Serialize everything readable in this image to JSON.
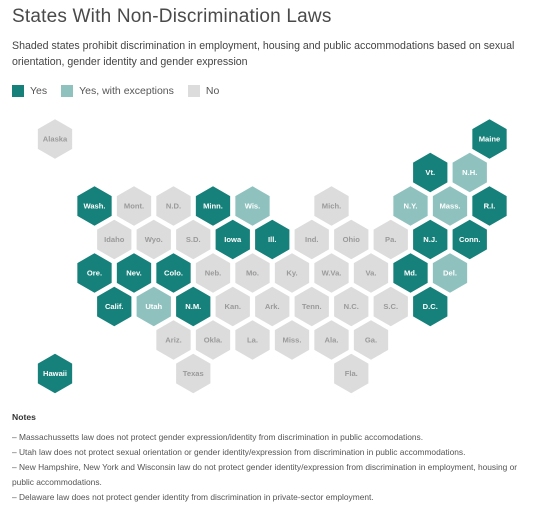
{
  "title": "States With Non-Discrimination Laws",
  "subtitle": "Shaded states prohibit discrimination in employment, housing and public accommodations based on sexual orientation, gender identity and gender expression",
  "legend": [
    {
      "key": "yes",
      "label": "Yes",
      "color": "#16807a"
    },
    {
      "key": "exceptions",
      "label": "Yes, with exceptions",
      "color": "#8fc2bf"
    },
    {
      "key": "no",
      "label": "No",
      "color": "#dcdcdc"
    }
  ],
  "label_colors": {
    "yes": "#ffffff",
    "exceptions": "#ffffff",
    "no": "#9a9a9a"
  },
  "states": [
    {
      "label": "Alaska",
      "row": 0,
      "col": 0,
      "status": "no"
    },
    {
      "label": "Maine",
      "row": 0,
      "col": 11,
      "status": "yes"
    },
    {
      "label": "Vt.",
      "row": 1,
      "col": 9.5,
      "status": "yes"
    },
    {
      "label": "N.H.",
      "row": 1,
      "col": 10.5,
      "status": "exceptions"
    },
    {
      "label": "Wash.",
      "row": 2,
      "col": 1,
      "status": "yes"
    },
    {
      "label": "Mont.",
      "row": 2,
      "col": 2,
      "status": "no"
    },
    {
      "label": "N.D.",
      "row": 2,
      "col": 3,
      "status": "no"
    },
    {
      "label": "Minn.",
      "row": 2,
      "col": 4,
      "status": "yes"
    },
    {
      "label": "Wis.",
      "row": 2,
      "col": 5,
      "status": "exceptions"
    },
    {
      "label": "Mich.",
      "row": 2,
      "col": 7,
      "status": "no"
    },
    {
      "label": "N.Y.",
      "row": 2,
      "col": 9,
      "status": "exceptions"
    },
    {
      "label": "Mass.",
      "row": 2,
      "col": 10,
      "status": "exceptions"
    },
    {
      "label": "R.I.",
      "row": 2,
      "col": 11,
      "status": "yes"
    },
    {
      "label": "Idaho",
      "row": 3,
      "col": 1.5,
      "status": "no"
    },
    {
      "label": "Wyo.",
      "row": 3,
      "col": 2.5,
      "status": "no"
    },
    {
      "label": "S.D.",
      "row": 3,
      "col": 3.5,
      "status": "no"
    },
    {
      "label": "Iowa",
      "row": 3,
      "col": 4.5,
      "status": "yes"
    },
    {
      "label": "Ill.",
      "row": 3,
      "col": 5.5,
      "status": "yes"
    },
    {
      "label": "Ind.",
      "row": 3,
      "col": 6.5,
      "status": "no"
    },
    {
      "label": "Ohio",
      "row": 3,
      "col": 7.5,
      "status": "no"
    },
    {
      "label": "Pa.",
      "row": 3,
      "col": 8.5,
      "status": "no"
    },
    {
      "label": "N.J.",
      "row": 3,
      "col": 9.5,
      "status": "yes"
    },
    {
      "label": "Conn.",
      "row": 3,
      "col": 10.5,
      "status": "yes"
    },
    {
      "label": "Ore.",
      "row": 4,
      "col": 1,
      "status": "yes"
    },
    {
      "label": "Nev.",
      "row": 4,
      "col": 2,
      "status": "yes"
    },
    {
      "label": "Colo.",
      "row": 4,
      "col": 3,
      "status": "yes"
    },
    {
      "label": "Neb.",
      "row": 4,
      "col": 4,
      "status": "no"
    },
    {
      "label": "Mo.",
      "row": 4,
      "col": 5,
      "status": "no"
    },
    {
      "label": "Ky.",
      "row": 4,
      "col": 6,
      "status": "no"
    },
    {
      "label": "W.Va.",
      "row": 4,
      "col": 7,
      "status": "no"
    },
    {
      "label": "Va.",
      "row": 4,
      "col": 8,
      "status": "no"
    },
    {
      "label": "Md.",
      "row": 4,
      "col": 9,
      "status": "yes"
    },
    {
      "label": "Del.",
      "row": 4,
      "col": 10,
      "status": "exceptions"
    },
    {
      "label": "Calif.",
      "row": 5,
      "col": 1.5,
      "status": "yes"
    },
    {
      "label": "Utah",
      "row": 5,
      "col": 2.5,
      "status": "exceptions"
    },
    {
      "label": "N.M.",
      "row": 5,
      "col": 3.5,
      "status": "yes"
    },
    {
      "label": "Kan.",
      "row": 5,
      "col": 4.5,
      "status": "no"
    },
    {
      "label": "Ark.",
      "row": 5,
      "col": 5.5,
      "status": "no"
    },
    {
      "label": "Tenn.",
      "row": 5,
      "col": 6.5,
      "status": "no"
    },
    {
      "label": "N.C.",
      "row": 5,
      "col": 7.5,
      "status": "no"
    },
    {
      "label": "S.C.",
      "row": 5,
      "col": 8.5,
      "status": "no"
    },
    {
      "label": "D.C.",
      "row": 5,
      "col": 9.5,
      "status": "yes"
    },
    {
      "label": "Ariz.",
      "row": 6,
      "col": 3,
      "status": "no"
    },
    {
      "label": "Okla.",
      "row": 6,
      "col": 4,
      "status": "no"
    },
    {
      "label": "La.",
      "row": 6,
      "col": 5,
      "status": "no"
    },
    {
      "label": "Miss.",
      "row": 6,
      "col": 6,
      "status": "no"
    },
    {
      "label": "Ala.",
      "row": 6,
      "col": 7,
      "status": "no"
    },
    {
      "label": "Ga.",
      "row": 6,
      "col": 8,
      "status": "no"
    },
    {
      "label": "Hawaii",
      "row": 7,
      "col": 0,
      "status": "yes"
    },
    {
      "label": "Texas",
      "row": 7,
      "col": 3.5,
      "status": "no"
    },
    {
      "label": "Fla.",
      "row": 7,
      "col": 7.5,
      "status": "no"
    }
  ],
  "notes": {
    "heading": "Notes",
    "lines": [
      "– Massachussetts law does not protect gender expression/identity from discrimination in public accomodations.",
      "– Utah law does not protect sexual orientation or gender identity/expression from discrimination in public accommodations.",
      "– New Hampshire, New York and Wisconsin law do not protect gender identity/expression from discrimination in employment, housing or public accommodations.",
      "– Delaware law does not protect gender identity from discrimination in private-sector employment."
    ]
  }
}
